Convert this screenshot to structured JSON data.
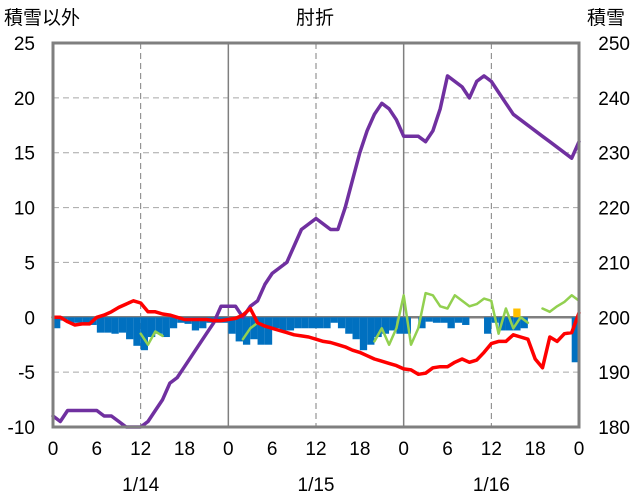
{
  "chart_data": {
    "type": "line",
    "title": "肘折",
    "left_axis": {
      "label": "積雪以外",
      "ylim": [
        -10,
        25
      ],
      "ticks": [
        25,
        20,
        15,
        10,
        5,
        0,
        -5,
        -10
      ]
    },
    "right_axis": {
      "label": "積雪",
      "ylim": [
        180,
        250
      ],
      "ticks": [
        250,
        240,
        230,
        220,
        210,
        200,
        190,
        180
      ]
    },
    "x": {
      "range_hours": [
        0,
        72
      ],
      "tick_labels": [
        "0",
        "6",
        "12",
        "18",
        "0",
        "6",
        "12",
        "18",
        "0",
        "6",
        "12",
        "18",
        "0"
      ],
      "date_labels": [
        "1/14",
        "1/15",
        "1/16"
      ],
      "grid": true
    },
    "series": [
      {
        "role": "snow_depth",
        "axis": "right",
        "color": "#7030a0",
        "points": [
          [
            0,
            182
          ],
          [
            1,
            181
          ],
          [
            2,
            183
          ],
          [
            3,
            183
          ],
          [
            4,
            183
          ],
          [
            5,
            183
          ],
          [
            6,
            183
          ],
          [
            7,
            182
          ],
          [
            8,
            182
          ],
          [
            9,
            181
          ],
          [
            10,
            180
          ],
          [
            11,
            180
          ],
          [
            12,
            180
          ],
          [
            13,
            181
          ],
          [
            14,
            183
          ],
          [
            15,
            185
          ],
          [
            16,
            188
          ],
          [
            17,
            189
          ],
          [
            18,
            191
          ],
          [
            19,
            193
          ],
          [
            20,
            195
          ],
          [
            21,
            197
          ],
          [
            22,
            199
          ],
          [
            23,
            202
          ],
          [
            24,
            202
          ],
          [
            25,
            202
          ],
          [
            26,
            200
          ],
          [
            27,
            202
          ],
          [
            28,
            203
          ],
          [
            29,
            206
          ],
          [
            30,
            208
          ],
          [
            31,
            209
          ],
          [
            32,
            210
          ],
          [
            33,
            213
          ],
          [
            34,
            216
          ],
          [
            35,
            217
          ],
          [
            36,
            218
          ],
          [
            37,
            217
          ],
          [
            38,
            216
          ],
          [
            39,
            216
          ],
          [
            40,
            220
          ],
          [
            41,
            225
          ],
          [
            42,
            230
          ],
          [
            43,
            234
          ],
          [
            44,
            237
          ],
          [
            45,
            239
          ],
          [
            46,
            238
          ],
          [
            47,
            236
          ],
          [
            48,
            233
          ],
          [
            49,
            233
          ],
          [
            50,
            233
          ],
          [
            51,
            232
          ],
          [
            52,
            234
          ],
          [
            53,
            238
          ],
          [
            54,
            244
          ],
          [
            55,
            243
          ],
          [
            56,
            242
          ],
          [
            57,
            240
          ],
          [
            58,
            243
          ],
          [
            59,
            244
          ],
          [
            60,
            243
          ],
          [
            61,
            241
          ],
          [
            62,
            239
          ],
          [
            63,
            237
          ],
          [
            64,
            236
          ],
          [
            65,
            235
          ],
          [
            66,
            234
          ],
          [
            67,
            233
          ],
          [
            68,
            232
          ],
          [
            69,
            231
          ],
          [
            70,
            230
          ],
          [
            71,
            229
          ],
          [
            72,
            232
          ]
        ]
      },
      {
        "role": "temperature",
        "axis": "left",
        "color": "#ff0000",
        "points": [
          [
            0,
            0
          ],
          [
            1,
            0
          ],
          [
            2,
            -0.4
          ],
          [
            3,
            -0.7
          ],
          [
            4,
            -0.6
          ],
          [
            5,
            -0.6
          ],
          [
            6,
            0
          ],
          [
            7,
            0.2
          ],
          [
            8,
            0.5
          ],
          [
            9,
            0.9
          ],
          [
            10,
            1.2
          ],
          [
            11,
            1.5
          ],
          [
            12,
            1.3
          ],
          [
            13,
            0.5
          ],
          [
            14,
            0.5
          ],
          [
            15,
            0.3
          ],
          [
            16,
            0.2
          ],
          [
            17,
            0
          ],
          [
            18,
            -0.2
          ],
          [
            19,
            -0.2
          ],
          [
            20,
            -0.2
          ],
          [
            21,
            -0.2
          ],
          [
            22,
            -0.3
          ],
          [
            23,
            -0.3
          ],
          [
            24,
            -0.2
          ],
          [
            25,
            -0.1
          ],
          [
            26,
            0.2
          ],
          [
            27,
            0.8
          ],
          [
            28,
            -0.5
          ],
          [
            29,
            -0.8
          ],
          [
            30,
            -1
          ],
          [
            31,
            -1.2
          ],
          [
            32,
            -1.4
          ],
          [
            33,
            -1.6
          ],
          [
            34,
            -1.7
          ],
          [
            35,
            -1.8
          ],
          [
            36,
            -2
          ],
          [
            37,
            -2.2
          ],
          [
            38,
            -2.3
          ],
          [
            39,
            -2.5
          ],
          [
            40,
            -2.7
          ],
          [
            41,
            -3
          ],
          [
            42,
            -3.2
          ],
          [
            43,
            -3.5
          ],
          [
            44,
            -3.8
          ],
          [
            45,
            -4
          ],
          [
            46,
            -4.2
          ],
          [
            47,
            -4.4
          ],
          [
            48,
            -4.7
          ],
          [
            49,
            -4.8
          ],
          [
            50,
            -5.2
          ],
          [
            51,
            -5.1
          ],
          [
            52,
            -4.6
          ],
          [
            53,
            -4.5
          ],
          [
            54,
            -4.5
          ],
          [
            55,
            -4.1
          ],
          [
            56,
            -3.8
          ],
          [
            57,
            -4.1
          ],
          [
            58,
            -3.9
          ],
          [
            59,
            -3.2
          ],
          [
            60,
            -2.4
          ],
          [
            61,
            -2.2
          ],
          [
            62,
            -2.2
          ],
          [
            63,
            -1.6
          ],
          [
            64,
            -1.8
          ],
          [
            65,
            -2
          ],
          [
            66,
            -3.8
          ],
          [
            67,
            -4.6
          ],
          [
            68,
            -1.8
          ],
          [
            69,
            -2.2
          ],
          [
            70,
            -1.5
          ],
          [
            71,
            -1.4
          ],
          [
            72,
            0.4
          ]
        ]
      },
      {
        "role": "wind_speed",
        "axis": "left",
        "color": "#92d050",
        "segments": [
          [
            [
              12,
              -1.5
            ],
            [
              13,
              -2.5
            ],
            [
              14,
              -1.3
            ],
            [
              15,
              -1.7
            ]
          ],
          [
            [
              26,
              -2
            ],
            [
              27,
              -1
            ],
            [
              28,
              -0.5
            ]
          ],
          [
            [
              44,
              -2.2
            ],
            [
              45,
              -1
            ],
            [
              46,
              -2.5
            ],
            [
              47,
              -1
            ],
            [
              48,
              2
            ],
            [
              49,
              -2.5
            ],
            [
              50,
              -1
            ],
            [
              51,
              2.2
            ],
            [
              52,
              2
            ],
            [
              53,
              1
            ],
            [
              54,
              0.8
            ],
            [
              55,
              2
            ],
            [
              56,
              1.5
            ],
            [
              57,
              1
            ],
            [
              58,
              1.2
            ],
            [
              59,
              1.7
            ],
            [
              60,
              1.5
            ],
            [
              61,
              -1.5
            ],
            [
              62,
              0.8
            ],
            [
              63,
              -1
            ],
            [
              64,
              0
            ],
            [
              65,
              -0.5
            ]
          ],
          [
            [
              67,
              0.8
            ],
            [
              68,
              0.5
            ],
            [
              69,
              1
            ],
            [
              70,
              1.4
            ],
            [
              71,
              2
            ],
            [
              72,
              1.5
            ]
          ]
        ]
      }
    ],
    "bars": {
      "role": "precipitation",
      "axis": "left",
      "color": "#0070c0",
      "values": [
        -1,
        -0.3,
        -0.5,
        -0.5,
        -0.6,
        -0.7,
        -1.4,
        -1.4,
        -1.5,
        -1.4,
        -2,
        -2.6,
        -3,
        -1.8,
        -1.5,
        -1.8,
        -1,
        -0.5,
        -0.6,
        -1.2,
        -1,
        -0.5,
        -0.5,
        -0.5,
        -1.5,
        -2.2,
        -2.5,
        -2,
        -2.5,
        -2.5,
        -1,
        -1.2,
        -1.2,
        -1,
        -1,
        -1,
        -1,
        -1,
        -0.5,
        -1,
        -1.5,
        -2,
        -3,
        -2.5,
        -1.8,
        -1.5,
        -1.2,
        -1.5,
        -1.5,
        0,
        -1,
        -0.4,
        -0.5,
        -0.5,
        -1,
        -0.5,
        -0.7,
        0,
        0,
        -1.5,
        -0.5,
        -1.2,
        -1.2,
        -1.2,
        -1,
        0,
        0,
        0,
        0,
        0,
        0,
        -4.1
      ],
      "extra": [
        {
          "hour": 63,
          "value": 0.8,
          "color": "#ffc000"
        }
      ]
    }
  }
}
